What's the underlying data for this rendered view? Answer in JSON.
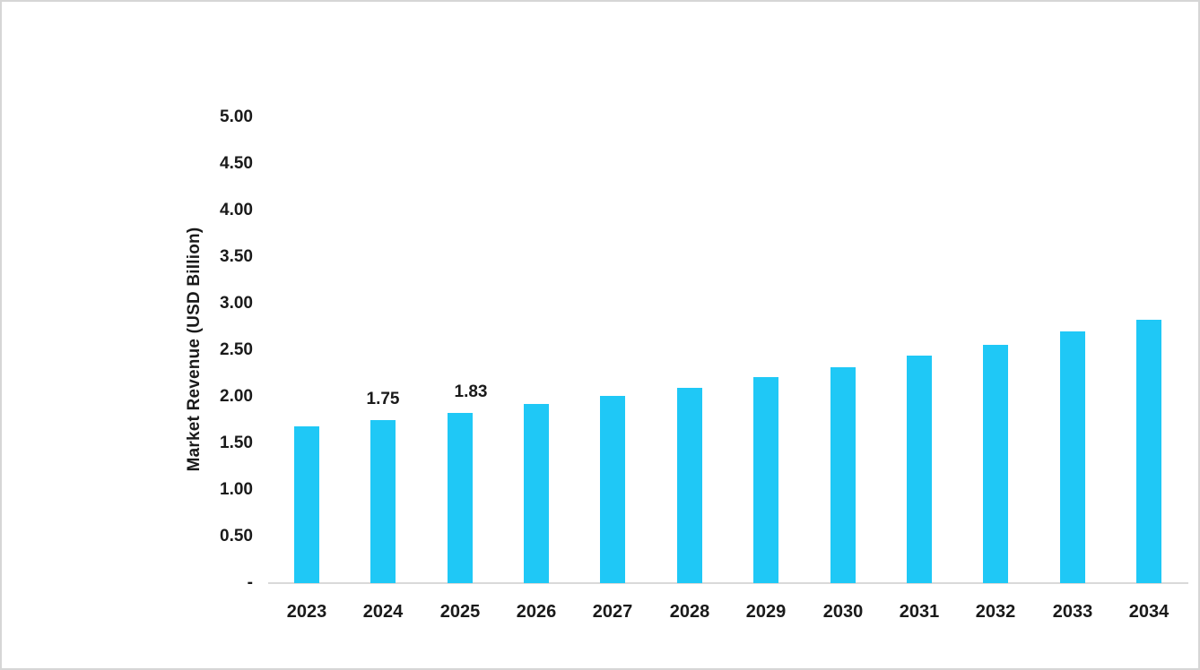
{
  "chart_data": {
    "type": "bar",
    "title": "",
    "xlabel": "",
    "ylabel": "Market Revenue (USD Billion)",
    "categories": [
      "2023",
      "2024",
      "2025",
      "2026",
      "2027",
      "2028",
      "2029",
      "2030",
      "2031",
      "2032",
      "2033",
      "2034"
    ],
    "values": [
      1.68,
      1.75,
      1.83,
      1.92,
      2.01,
      2.1,
      2.21,
      2.32,
      2.44,
      2.56,
      2.7,
      2.83
    ],
    "shown_point_labels": [
      "",
      "1.75",
      "1.83",
      "",
      "",
      "",
      "",
      "",
      "",
      "",
      "",
      ""
    ],
    "ylim": [
      0,
      5
    ],
    "ytick_step": 0.5,
    "ytick_labels": [
      "5.00",
      "4.50",
      "4.00",
      "3.50",
      "3.00",
      "2.50",
      "2.00",
      "1.50",
      "1.00",
      "0.50",
      "-"
    ],
    "grid": "off",
    "legend": "none",
    "bar_color": "#1fc8f6",
    "axis_line_color": "#d9d9d9",
    "text_color": "#1a1a1a",
    "background_color": "#ffffff",
    "border_color": "#d6d6d6"
  }
}
